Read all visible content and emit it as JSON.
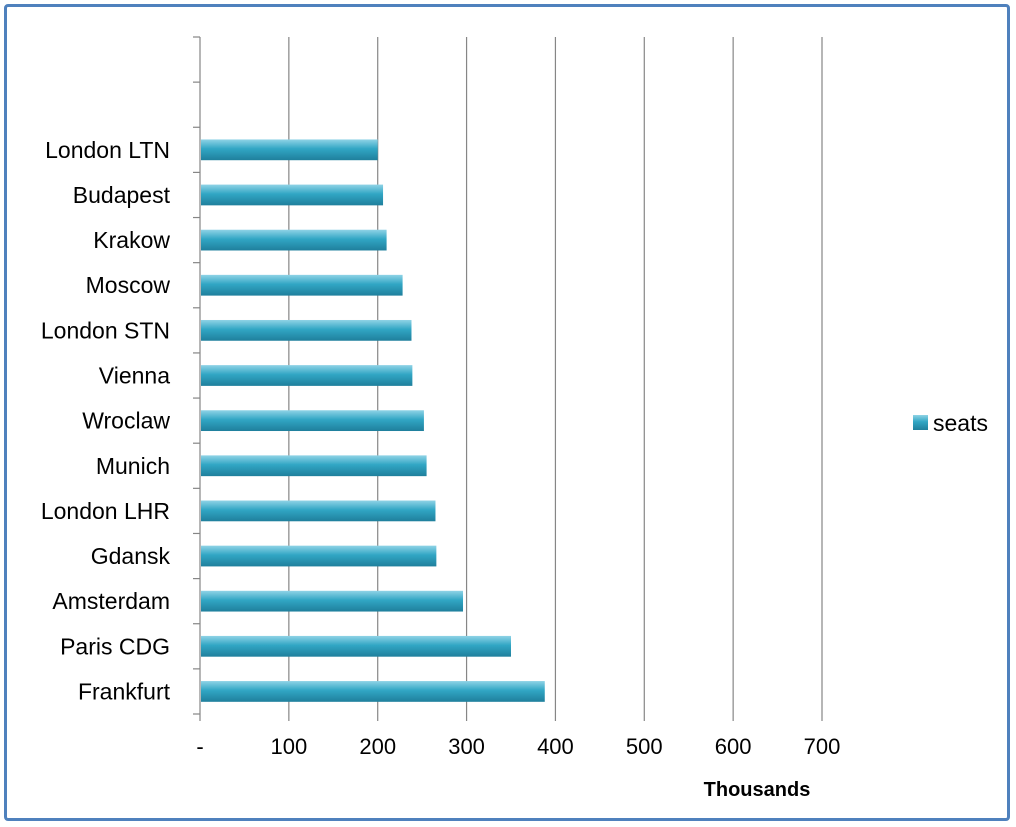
{
  "chart_data": {
    "type": "bar",
    "orientation": "horizontal",
    "categories": [
      "London LTN",
      "Budapest",
      "Krakow",
      "Moscow",
      "London STN",
      "Vienna",
      "Wroclaw",
      "Munich",
      "London LHR",
      "Gdansk",
      "Amsterdam",
      "Paris CDG",
      "Frankfurt"
    ],
    "series": [
      {
        "name": "seats",
        "values": [
          200,
          206,
          210,
          228,
          238,
          239,
          252,
          255,
          265,
          266,
          296,
          350,
          388
        ]
      }
    ],
    "x_ticks": [
      "-",
      "100",
      "200",
      "300",
      "400",
      "500",
      "600",
      "700"
    ],
    "xlim": [
      0,
      700
    ],
    "x_unit_label": "Thousands",
    "grid": "vertical",
    "legend_position": "right",
    "bar_color": "#31a6c4"
  }
}
